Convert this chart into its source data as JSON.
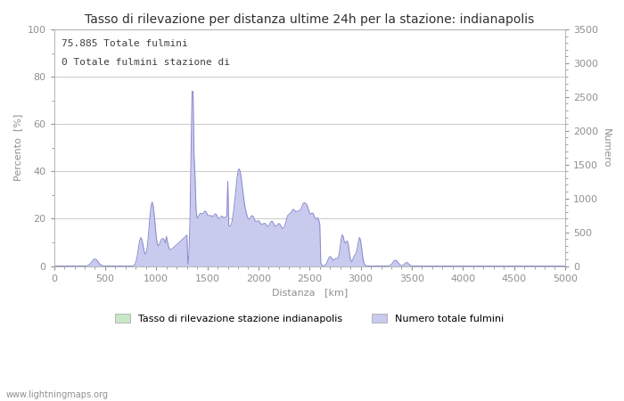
{
  "title": "Tasso di rilevazione per distanza ultime 24h per la stazione: indianapolis",
  "xlabel": "Distanza   [km]",
  "ylabel_left": "Percento  [%]",
  "ylabel_right": "Numero",
  "annotation_line1": "75.885 Totale fulmini",
  "annotation_line2": "0 Totale fulmini stazione di",
  "xlim": [
    0,
    5000
  ],
  "ylim_left": [
    0,
    100
  ],
  "ylim_right": [
    0,
    3500
  ],
  "xticks": [
    0,
    500,
    1000,
    1500,
    2000,
    2500,
    3000,
    3500,
    4000,
    4500,
    5000
  ],
  "yticks_left": [
    0,
    20,
    40,
    60,
    80,
    100
  ],
  "yticks_right": [
    0,
    500,
    1000,
    1500,
    2000,
    2500,
    3000,
    3500
  ],
  "fill_color_blue": "#c8caee",
  "line_color_blue": "#8888cc",
  "fill_color_green": "#c8e8c8",
  "line_color_green": "#88bb88",
  "bg_color": "#ffffff",
  "grid_color": "#c0c0c0",
  "legend_label_green": "Tasso di rilevazione stazione indianapolis",
  "legend_label_blue": "Numero totale fulmini",
  "watermark": "www.lightningmaps.org",
  "title_fontsize": 10,
  "axis_fontsize": 8,
  "tick_fontsize": 8,
  "annotation_fontsize": 8
}
